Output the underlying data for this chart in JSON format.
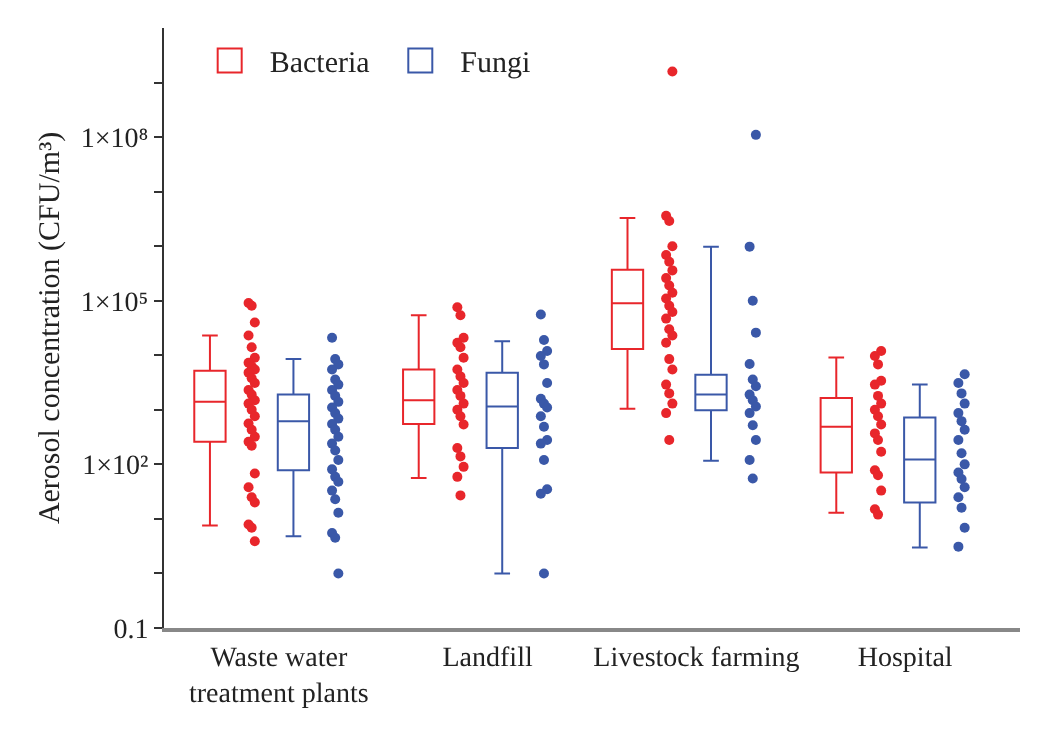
{
  "chart_data": {
    "type": "box",
    "ylabel": "Aerosol concentration (CFU/m³)",
    "log": true,
    "legend": "top left",
    "grid": false,
    "marker": "circle",
    "categories": [
      "Waste water treatment plants",
      "Landfill",
      "Livestock farming",
      "Hospital"
    ],
    "ylim": [
      0.1,
      10000000000
    ],
    "yticks": [
      {
        "value": 0.1,
        "label": "0.1"
      },
      {
        "value": 1,
        "label": null
      },
      {
        "value": 10,
        "label": null
      },
      {
        "value": 100,
        "label": "1×10²"
      },
      {
        "value": 1000,
        "label": null
      },
      {
        "value": 10000,
        "label": null
      },
      {
        "value": 100000,
        "label": "1×10⁵"
      },
      {
        "value": 1000000,
        "label": null
      },
      {
        "value": 10000000,
        "label": null
      },
      {
        "value": 100000000,
        "label": "1×10⁸"
      },
      {
        "value": 1000000000,
        "label": null
      }
    ],
    "series": [
      {
        "name": "Bacteria",
        "color": "#e8262b",
        "boxes": [
          {
            "low": 7.6,
            "q1": 260,
            "median": 1400,
            "q3": 5200,
            "high": 23000
          },
          {
            "low": 56,
            "q1": 550,
            "median": 1500,
            "q3": 5500,
            "high": 54000
          },
          {
            "low": 1050,
            "q1": 13000,
            "median": 90000,
            "q3": 370000,
            "high": 3300000
          },
          {
            "low": 13,
            "q1": 71,
            "median": 490,
            "q3": 1650,
            "high": 9100
          }
        ]
      },
      {
        "name": "Fungi",
        "color": "#3a58a8",
        "boxes": [
          {
            "low": 4.8,
            "q1": 78,
            "median": 620,
            "q3": 1900,
            "high": 8500
          },
          {
            "low": 1.0,
            "q1": 200,
            "median": 1150,
            "q3": 4800,
            "high": 18000
          },
          {
            "low": 117,
            "q1": 980,
            "median": 1900,
            "q3": 4400,
            "high": 980000
          },
          {
            "low": 3,
            "q1": 20,
            "median": 123,
            "q3": 720,
            "high": 2900
          }
        ]
      },
      {
        "type": "scatter",
        "color": "#e8262b",
        "x": [
          "Waste water treatment plants",
          "Waste water treatment plants",
          "Waste water treatment plants",
          "Waste water treatment plants",
          "Waste water treatment plants",
          "Waste water treatment plants",
          "Waste water treatment plants",
          "Waste water treatment plants",
          "Waste water treatment plants",
          "Waste water treatment plants",
          "Waste water treatment plants",
          "Waste water treatment plants",
          "Waste water treatment plants",
          "Waste water treatment plants",
          "Waste water treatment plants",
          "Waste water treatment plants",
          "Waste water treatment plants",
          "Waste water treatment plants",
          "Waste water treatment plants",
          "Waste water treatment plants",
          "Waste water treatment plants",
          "Waste water treatment plants",
          "Waste water treatment plants",
          "Waste water treatment plants",
          "Waste water treatment plants",
          "Waste water treatment plants",
          "Waste water treatment plants",
          "Waste water treatment plants",
          "Waste water treatment plants",
          "Waste water treatment plants",
          "Landfill",
          "Landfill",
          "Landfill",
          "Landfill",
          "Landfill",
          "Landfill",
          "Landfill",
          "Landfill",
          "Landfill",
          "Landfill",
          "Landfill",
          "Landfill",
          "Landfill",
          "Landfill",
          "Landfill",
          "Landfill",
          "Landfill",
          "Landfill",
          "Landfill",
          "Landfill",
          "Livestock farming",
          "Livestock farming",
          "Livestock farming",
          "Livestock farming",
          "Livestock farming",
          "Livestock farming",
          "Livestock farming",
          "Livestock farming",
          "Livestock farming",
          "Livestock farming",
          "Livestock farming",
          "Livestock farming",
          "Livestock farming",
          "Livestock farming",
          "Livestock farming",
          "Livestock farming",
          "Livestock farming",
          "Livestock farming",
          "Livestock farming",
          "Livestock farming",
          "Livestock farming",
          "Livestock farming",
          "Livestock farming",
          "Livestock farming",
          "Hospital",
          "Hospital",
          "Hospital",
          "Hospital",
          "Hospital",
          "Hospital",
          "Hospital",
          "Hospital",
          "Hospital",
          "Hospital",
          "Hospital",
          "Hospital",
          "Hospital",
          "Hospital",
          "Hospital",
          "Hospital",
          "Hospital",
          "Hospital"
        ],
        "values": [
          91000,
          81000,
          40000,
          23000,
          14000,
          9000,
          7300,
          6300,
          5500,
          4800,
          3800,
          3100,
          2300,
          1900,
          1500,
          1300,
          1000,
          760,
          560,
          430,
          320,
          260,
          220,
          68,
          38,
          25,
          20,
          7.9,
          6.9,
          3.9,
          76000,
          54000,
          21000,
          17000,
          14000,
          9000,
          5500,
          4100,
          3100,
          2300,
          1800,
          1300,
          1000,
          760,
          540,
          200,
          140,
          90,
          59,
          27,
          1600000000,
          3600000,
          2900000,
          1000000,
          690000,
          520000,
          360000,
          260000,
          190000,
          140000,
          110000,
          81000,
          62000,
          47000,
          30000,
          23000,
          17000,
          8500,
          5500,
          2900,
          2000,
          1300,
          870,
          280,
          12000,
          9700,
          6800,
          3400,
          2900,
          1800,
          1300,
          1000,
          760,
          540,
          370,
          280,
          170,
          78,
          63,
          33,
          15,
          12
        ]
      },
      {
        "type": "scatter",
        "color": "#3a58a8",
        "x": [
          "Waste water treatment plants",
          "Waste water treatment plants",
          "Waste water treatment plants",
          "Waste water treatment plants",
          "Waste water treatment plants",
          "Waste water treatment plants",
          "Waste water treatment plants",
          "Waste water treatment plants",
          "Waste water treatment plants",
          "Waste water treatment plants",
          "Waste water treatment plants",
          "Waste water treatment plants",
          "Waste water treatment plants",
          "Waste water treatment plants",
          "Waste water treatment plants",
          "Waste water treatment plants",
          "Waste water treatment plants",
          "Waste water treatment plants",
          "Waste water treatment plants",
          "Waste water treatment plants",
          "Waste water treatment plants",
          "Waste water treatment plants",
          "Waste water treatment plants",
          "Waste water treatment plants",
          "Waste water treatment plants",
          "Waste water treatment plants",
          "Waste water treatment plants",
          "Landfill",
          "Landfill",
          "Landfill",
          "Landfill",
          "Landfill",
          "Landfill",
          "Landfill",
          "Landfill",
          "Landfill",
          "Landfill",
          "Landfill",
          "Landfill",
          "Landfill",
          "Landfill",
          "Landfill",
          "Landfill",
          "Landfill",
          "Livestock farming",
          "Livestock farming",
          "Livestock farming",
          "Livestock farming",
          "Livestock farming",
          "Livestock farming",
          "Livestock farming",
          "Livestock farming",
          "Livestock farming",
          "Livestock farming",
          "Livestock farming",
          "Livestock farming",
          "Livestock farming",
          "Livestock farming",
          "Livestock farming",
          "Hospital",
          "Hospital",
          "Hospital",
          "Hospital",
          "Hospital",
          "Hospital",
          "Hospital",
          "Hospital",
          "Hospital",
          "Hospital",
          "Hospital",
          "Hospital",
          "Hospital",
          "Hospital",
          "Hospital",
          "Hospital",
          "Hospital"
        ],
        "values": [
          21000,
          8500,
          6800,
          5500,
          3600,
          2900,
          2300,
          1800,
          1400,
          1100,
          870,
          690,
          550,
          430,
          320,
          240,
          180,
          120,
          81,
          59,
          48,
          33,
          23,
          13,
          5.5,
          4.5,
          1.0,
          56000,
          19000,
          12000,
          9700,
          6800,
          3100,
          1600,
          1300,
          1100,
          760,
          490,
          280,
          240,
          120,
          35,
          29,
          1.0,
          110000000,
          980000,
          100000,
          26000,
          6900,
          3600,
          2700,
          1900,
          1500,
          1150,
          870,
          520,
          280,
          120,
          55,
          4500,
          3100,
          2000,
          1300,
          870,
          620,
          430,
          280,
          160,
          100,
          71,
          54,
          38,
          25,
          16,
          6.9,
          3.1
        ]
      }
    ]
  }
}
